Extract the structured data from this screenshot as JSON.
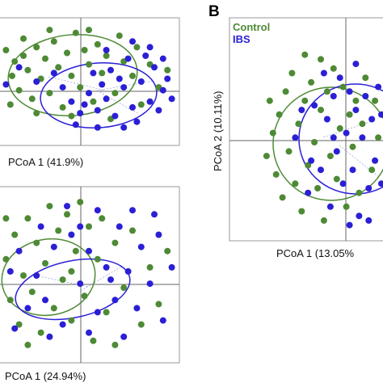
{
  "colors": {
    "control": "#4e8a35",
    "ibs": "#2b1fd6",
    "frame": "#999999",
    "axis": "#666666"
  },
  "chart_data": [
    {
      "type": "scatter",
      "panel": "top-left",
      "xlabel": "PCoA 1 (41.9%)",
      "ylabel": "",
      "xlim": [
        -1,
        1
      ],
      "ylim": [
        -1,
        1
      ],
      "series": [
        {
          "group": "control",
          "points": [
            [
              -0.95,
              0.55
            ],
            [
              -0.85,
              0.35
            ],
            [
              -0.88,
              0.1
            ],
            [
              -0.8,
              -0.15
            ],
            [
              -0.75,
              0.45
            ],
            [
              -0.7,
              0.2
            ],
            [
              -0.65,
              -0.3
            ],
            [
              -0.6,
              0.6
            ],
            [
              -0.55,
              0.05
            ],
            [
              -0.5,
              0.4
            ],
            [
              -0.45,
              -0.2
            ],
            [
              -0.4,
              0.7
            ],
            [
              -0.35,
              0.25
            ],
            [
              -0.3,
              -0.45
            ],
            [
              -0.25,
              0.5
            ],
            [
              -0.2,
              0.1
            ],
            [
              -0.15,
              0.85
            ],
            [
              -0.1,
              -0.1
            ],
            [
              -0.05,
              0.55
            ],
            [
              0.0,
              0.3
            ],
            [
              0.05,
              -0.35
            ],
            [
              0.1,
              0.65
            ],
            [
              0.15,
              0.15
            ],
            [
              0.2,
              0.45
            ],
            [
              0.3,
              -0.2
            ],
            [
              0.4,
              0.35
            ],
            [
              0.5,
              0.1
            ],
            [
              0.6,
              -0.4
            ],
            [
              -0.9,
              -0.4
            ],
            [
              -0.6,
              -0.55
            ],
            [
              -0.2,
              -0.6
            ],
            [
              0.25,
              -0.65
            ],
            [
              0.7,
              0.3
            ],
            [
              0.8,
              -0.1
            ],
            [
              -0.75,
              0.75
            ],
            [
              0.35,
              0.8
            ],
            [
              0.0,
              0.9
            ],
            [
              -0.45,
              0.9
            ],
            [
              0.55,
              0.6
            ],
            [
              0.9,
              0.2
            ]
          ]
        },
        {
          "group": "ibs",
          "points": [
            [
              -0.2,
              -0.35
            ],
            [
              -0.1,
              -0.55
            ],
            [
              0.0,
              -0.2
            ],
            [
              0.1,
              -0.5
            ],
            [
              0.2,
              -0.3
            ],
            [
              0.3,
              -0.6
            ],
            [
              0.4,
              -0.1
            ],
            [
              0.5,
              -0.45
            ],
            [
              0.6,
              0.0
            ],
            [
              0.7,
              -0.35
            ],
            [
              0.75,
              0.25
            ],
            [
              0.85,
              -0.15
            ],
            [
              0.9,
              0.05
            ],
            [
              0.65,
              0.45
            ],
            [
              0.45,
              0.4
            ],
            [
              0.35,
              0.05
            ],
            [
              0.25,
              0.2
            ],
            [
              0.15,
              -0.05
            ],
            [
              0.05,
              0.15
            ],
            [
              -0.05,
              -0.4
            ],
            [
              -0.3,
              -0.1
            ],
            [
              -0.4,
              0.15
            ],
            [
              0.55,
              -0.7
            ],
            [
              0.8,
              -0.5
            ],
            [
              0.95,
              -0.3
            ],
            [
              -0.15,
              -0.75
            ],
            [
              0.1,
              -0.8
            ],
            [
              0.4,
              -0.8
            ],
            [
              0.7,
              0.6
            ],
            [
              0.5,
              0.7
            ],
            [
              -0.6,
              0.0
            ],
            [
              -0.8,
              0.25
            ],
            [
              -0.95,
              -0.05
            ],
            [
              0.2,
              0.55
            ],
            [
              0.85,
              0.4
            ]
          ]
        }
      ]
    },
    {
      "type": "scatter",
      "panel": "bottom-left",
      "xlabel": "PCoA 1 (24.94%)",
      "ylabel": "",
      "xlim": [
        -1,
        1
      ],
      "ylim": [
        -1,
        1
      ],
      "series": [
        {
          "group": "control",
          "points": [
            [
              -0.95,
              0.2
            ],
            [
              -0.9,
              -0.3
            ],
            [
              -0.85,
              0.5
            ],
            [
              -0.8,
              -0.6
            ],
            [
              -0.75,
              0.0
            ],
            [
              -0.7,
              0.7
            ],
            [
              -0.65,
              -0.2
            ],
            [
              -0.6,
              0.4
            ],
            [
              -0.55,
              -0.7
            ],
            [
              -0.5,
              0.15
            ],
            [
              -0.45,
              0.85
            ],
            [
              -0.4,
              -0.4
            ],
            [
              -0.35,
              0.55
            ],
            [
              -0.3,
              -0.05
            ],
            [
              -0.25,
              0.75
            ],
            [
              -0.2,
              -0.55
            ],
            [
              -0.15,
              0.3
            ],
            [
              -0.1,
              0.9
            ],
            [
              -0.05,
              -0.25
            ],
            [
              0.0,
              0.6
            ],
            [
              0.05,
              -0.8
            ],
            [
              0.1,
              0.2
            ],
            [
              0.15,
              0.7
            ],
            [
              0.2,
              -0.45
            ],
            [
              0.3,
              0.4
            ],
            [
              0.4,
              -0.15
            ],
            [
              0.5,
              0.55
            ],
            [
              0.6,
              -0.6
            ],
            [
              0.7,
              0.1
            ],
            [
              0.8,
              -0.35
            ],
            [
              -0.95,
              0.7
            ],
            [
              -0.7,
              -0.85
            ],
            [
              0.3,
              -0.85
            ],
            [
              0.9,
              0.3
            ],
            [
              -0.2,
              0.05
            ]
          ]
        },
        {
          "group": "ibs",
          "points": [
            [
              -0.9,
              0.05
            ],
            [
              -0.8,
              0.3
            ],
            [
              -0.7,
              -0.4
            ],
            [
              -0.6,
              0.0
            ],
            [
              -0.5,
              -0.3
            ],
            [
              -0.4,
              0.35
            ],
            [
              -0.3,
              -0.6
            ],
            [
              -0.2,
              0.5
            ],
            [
              -0.1,
              -0.1
            ],
            [
              0.0,
              0.3
            ],
            [
              0.1,
              -0.45
            ],
            [
              0.2,
              0.1
            ],
            [
              0.3,
              -0.3
            ],
            [
              0.35,
              0.6
            ],
            [
              0.45,
              0.05
            ],
            [
              0.55,
              -0.4
            ],
            [
              0.6,
              0.35
            ],
            [
              0.7,
              -0.1
            ],
            [
              0.8,
              0.5
            ],
            [
              0.85,
              -0.55
            ],
            [
              0.95,
              0.1
            ],
            [
              -0.55,
              0.6
            ],
            [
              -0.25,
              0.85
            ],
            [
              0.1,
              0.8
            ],
            [
              0.5,
              0.8
            ],
            [
              -0.45,
              -0.75
            ],
            [
              0.0,
              -0.7
            ],
            [
              0.4,
              -0.75
            ],
            [
              -0.85,
              -0.65
            ],
            [
              0.75,
              0.75
            ],
            [
              -0.1,
              0.6
            ],
            [
              0.25,
              -0.05
            ]
          ]
        }
      ]
    },
    {
      "type": "scatter",
      "panel": "B",
      "panel_label": "B",
      "xlabel": "PCoA 1 (13.05%",
      "ylabel": "PCoA 2 (10.11%)",
      "legend": [
        {
          "group": "control",
          "label": "Control"
        },
        {
          "group": "ibs",
          "label": "IBS"
        }
      ],
      "xlim": [
        -1,
        1
      ],
      "ylim": [
        -1,
        1
      ],
      "series": [
        {
          "group": "control",
          "points": [
            [
              -0.75,
              0.1
            ],
            [
              -0.7,
              -0.35
            ],
            [
              -0.65,
              0.3
            ],
            [
              -0.6,
              -0.6
            ],
            [
              -0.55,
              0.55
            ],
            [
              -0.5,
              -0.1
            ],
            [
              -0.45,
              0.75
            ],
            [
              -0.4,
              -0.45
            ],
            [
              -0.35,
              0.2
            ],
            [
              -0.3,
              -0.75
            ],
            [
              -0.25,
              0.45
            ],
            [
              -0.2,
              -0.25
            ],
            [
              -0.15,
              0.65
            ],
            [
              -0.1,
              0.0
            ],
            [
              -0.05,
              -0.5
            ],
            [
              0.0,
              0.35
            ],
            [
              0.05,
              -0.85
            ],
            [
              0.1,
              0.55
            ],
            [
              0.15,
              -0.15
            ],
            [
              0.2,
              0.8
            ],
            [
              0.25,
              -0.4
            ],
            [
              0.3,
              0.15
            ],
            [
              0.35,
              0.6
            ],
            [
              0.4,
              -0.7
            ],
            [
              0.45,
              0.3
            ],
            [
              0.5,
              -0.05
            ],
            [
              0.55,
              0.45
            ],
            [
              0.6,
              -0.55
            ],
            [
              0.65,
              0.2
            ],
            [
              0.7,
              0.7
            ],
            [
              0.8,
              -0.3
            ],
            [
              0.85,
              0.45
            ],
            [
              -0.8,
              0.45
            ],
            [
              -0.85,
              -0.15
            ],
            [
              0.0,
              0.9
            ],
            [
              -0.25,
              0.95
            ],
            [
              0.9,
              0.05
            ]
          ]
        },
        {
          "group": "ibs",
          "points": [
            [
              -0.4,
              0.05
            ],
            [
              -0.3,
              0.35
            ],
            [
              -0.2,
              -0.55
            ],
            [
              -0.1,
              0.4
            ],
            [
              0.0,
              -0.3
            ],
            [
              0.1,
              0.25
            ],
            [
              0.15,
              -0.7
            ],
            [
              0.2,
              0.5
            ],
            [
              0.25,
              -0.1
            ],
            [
              0.3,
              0.7
            ],
            [
              0.35,
              -0.45
            ],
            [
              0.4,
              0.1
            ],
            [
              0.45,
              0.55
            ],
            [
              0.5,
              -0.3
            ],
            [
              0.55,
              0.35
            ],
            [
              0.6,
              -0.8
            ],
            [
              0.65,
              0.05
            ],
            [
              0.7,
              0.5
            ],
            [
              0.75,
              -0.5
            ],
            [
              0.8,
              0.25
            ],
            [
              0.85,
              -0.2
            ],
            [
              0.9,
              0.6
            ],
            [
              0.95,
              -0.45
            ],
            [
              0.05,
              0.75
            ],
            [
              -0.15,
              -0.2
            ],
            [
              0.45,
              -0.9
            ],
            [
              0.75,
              -0.85
            ],
            [
              0.55,
              0.85
            ],
            [
              0.95,
              0.3
            ],
            [
              0.2,
              0.05
            ]
          ]
        }
      ]
    }
  ]
}
